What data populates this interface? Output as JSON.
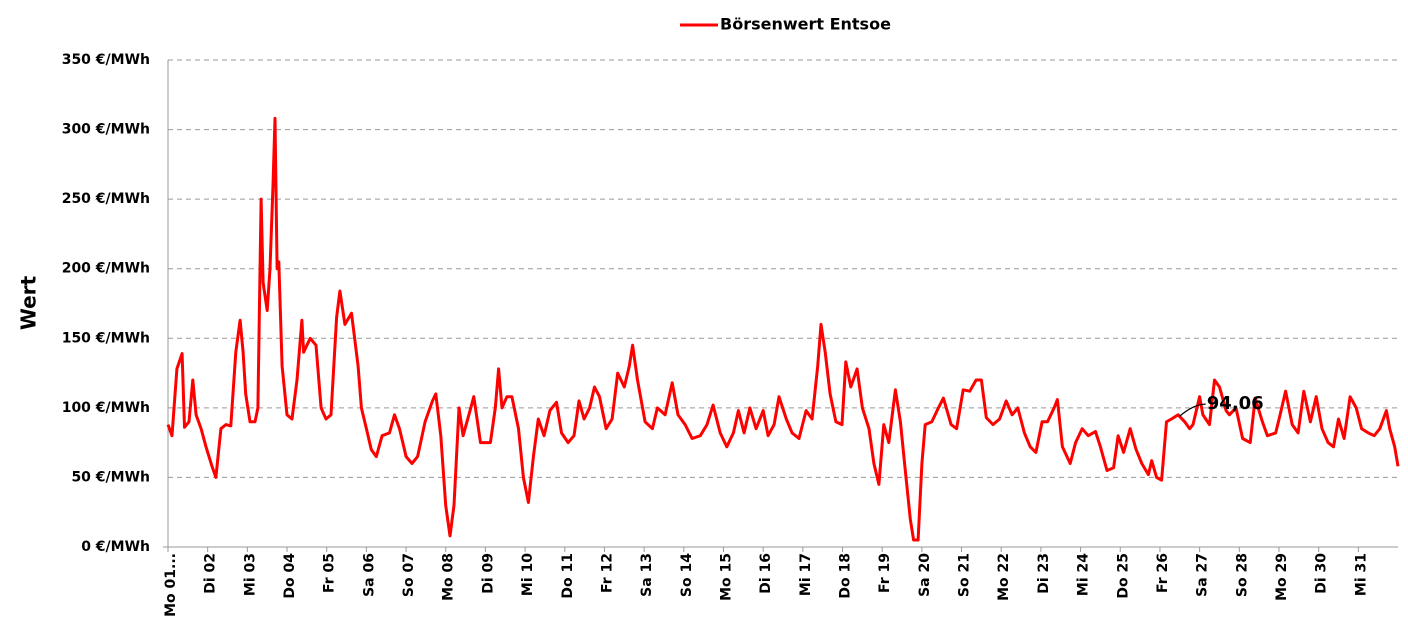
{
  "chart_data": {
    "type": "line",
    "y_axis_label": "Wert",
    "xlim": [
      0,
      744
    ],
    "xticks": [
      {
        "value": 0,
        "label": "Mo 01..."
      },
      {
        "value": 24,
        "label": "Di 02"
      },
      {
        "value": 48,
        "label": "Mi 03"
      },
      {
        "value": 72,
        "label": "Do 04"
      },
      {
        "value": 96,
        "label": "Fr 05"
      },
      {
        "value": 120,
        "label": "Sa 06"
      },
      {
        "value": 144,
        "label": "So 07"
      },
      {
        "value": 168,
        "label": "Mo 08"
      },
      {
        "value": 192,
        "label": "Di 09"
      },
      {
        "value": 216,
        "label": "Mi 10"
      },
      {
        "value": 240,
        "label": "Do 11"
      },
      {
        "value": 264,
        "label": "Fr 12"
      },
      {
        "value": 288,
        "label": "Sa 13"
      },
      {
        "value": 312,
        "label": "So 14"
      },
      {
        "value": 336,
        "label": "Mo 15"
      },
      {
        "value": 360,
        "label": "Di 16"
      },
      {
        "value": 384,
        "label": "Mi 17"
      },
      {
        "value": 408,
        "label": "Do 18"
      },
      {
        "value": 432,
        "label": "Fr 19"
      },
      {
        "value": 456,
        "label": "Sa 20"
      },
      {
        "value": 480,
        "label": "So 21"
      },
      {
        "value": 504,
        "label": "Mo 22"
      },
      {
        "value": 528,
        "label": "Di 23"
      },
      {
        "value": 552,
        "label": "Mi 24"
      },
      {
        "value": 576,
        "label": "Do 25"
      },
      {
        "value": 600,
        "label": "Fr 26"
      },
      {
        "value": 624,
        "label": "Sa 27"
      },
      {
        "value": 648,
        "label": "So 28"
      },
      {
        "value": 672,
        "label": "Mo 29"
      },
      {
        "value": 696,
        "label": "Di 30"
      },
      {
        "value": 720,
        "label": "Mi 31"
      }
    ],
    "ylim": [
      0,
      350
    ],
    "yticks": [
      {
        "value": 0,
        "label": "0 €/MWh"
      },
      {
        "value": 50,
        "label": "50 €/MWh"
      },
      {
        "value": 100,
        "label": "100 €/MWh"
      },
      {
        "value": 150,
        "label": "150 €/MWh"
      },
      {
        "value": 200,
        "label": "200 €/MWh"
      },
      {
        "value": 250,
        "label": "250 €/MWh"
      },
      {
        "value": 300,
        "label": "300 €/MWh"
      },
      {
        "value": 350,
        "label": "350 €/MWh"
      }
    ],
    "grid": true,
    "legend": "top",
    "x": [
      0,
      2.4,
      5.4,
      8.5,
      10,
      12.7,
      15,
      17,
      20,
      23,
      26.6,
      29,
      32,
      35,
      38,
      41,
      43.6,
      45.4,
      47,
      49.6,
      52.6,
      54.4,
      56.3,
      57.5,
      60,
      61.7,
      63.5,
      64.7,
      66,
      67,
      69,
      72,
      75,
      78,
      81,
      82,
      86,
      89.5,
      92.6,
      95.6,
      98.6,
      102,
      104,
      107,
      111,
      115,
      117,
      120,
      123,
      126,
      129.5,
      134,
      137,
      140,
      144,
      147.6,
      151,
      155.5,
      160,
      162,
      165,
      168,
      170.6,
      173,
      176,
      178.5,
      182,
      185,
      189,
      195,
      198,
      200,
      202,
      205,
      208,
      212,
      215,
      218,
      221,
      224,
      227.5,
      231,
      235,
      238,
      242,
      245.6,
      248.6,
      251.7,
      255,
      258,
      261,
      265,
      268.6,
      272,
      276,
      279,
      281,
      284,
      288.6,
      293,
      296,
      300.7,
      305,
      308.5,
      312.8,
      317,
      322,
      326,
      329.7,
      334,
      338,
      342,
      345,
      348.5,
      352,
      355.7,
      360,
      363,
      366.6,
      369.6,
      374,
      377.5,
      381.7,
      386,
      389.6,
      393,
      395,
      397.5,
      400.5,
      404,
      407.7,
      410,
      413,
      416.8,
      420,
      424,
      427,
      430,
      433,
      436,
      440,
      443,
      446,
      449,
      451,
      453.7,
      456,
      458,
      462,
      466,
      469,
      473.7,
      477,
      481,
      485,
      488.8,
      492,
      495,
      499,
      503,
      507,
      510.6,
      514,
      518,
      521.5,
      525,
      528.7,
      532,
      536,
      538,
      541,
      545.7,
      549,
      553,
      556.6,
      561,
      564,
      568,
      572,
      574.7,
      578,
      582,
      585.6,
      589,
      593,
      595,
      598,
      601,
      604,
      607,
      611,
      615,
      618,
      620,
      624,
      626,
      630,
      633,
      636,
      640,
      642,
      646,
      650,
      654.6,
      657.6,
      662,
      665,
      670,
      672.7,
      676,
      680,
      683.6,
      687,
      691,
      694.5,
      698,
      701.7,
      705,
      708,
      711.4,
      715,
      718.7,
      722,
      726,
      729.6,
      733,
      737,
      739,
      742,
      744
    ],
    "series": [
      {
        "name": "Börsenwert Entsoe",
        "color": "#ff0000",
        "values": [
          88,
          80,
          128,
          139,
          86,
          90,
          120,
          95,
          85,
          72,
          58,
          50,
          85,
          88,
          87,
          140,
          163,
          140,
          110,
          90,
          90,
          100,
          250,
          190,
          170,
          200,
          260,
          308,
          200,
          205,
          130,
          95,
          92,
          120,
          163,
          140,
          150,
          145,
          100,
          92,
          95,
          165,
          184,
          160,
          168,
          130,
          100,
          85,
          70,
          65,
          80,
          82,
          95,
          85,
          65,
          60,
          65,
          90,
          105,
          110,
          80,
          30,
          8,
          30,
          100,
          80,
          95,
          108,
          75,
          75,
          100,
          128,
          100,
          108,
          108,
          85,
          50,
          32,
          65,
          92,
          80,
          98,
          104,
          82,
          75,
          80,
          105,
          92,
          100,
          115,
          108,
          85,
          92,
          125,
          115,
          130,
          145,
          120,
          90,
          85,
          100,
          95,
          118,
          95,
          88,
          78,
          80,
          88,
          102,
          82,
          72,
          82,
          98,
          82,
          100,
          85,
          98,
          80,
          88,
          108,
          92,
          82,
          78,
          98,
          92,
          130,
          160,
          140,
          110,
          90,
          88,
          133,
          115,
          128,
          100,
          85,
          60,
          45,
          88,
          75,
          113,
          90,
          55,
          20,
          5,
          5,
          60,
          88,
          90,
          100,
          107,
          88,
          85,
          113,
          112,
          120,
          120,
          93,
          88,
          92,
          105,
          95,
          100,
          82,
          72,
          68,
          90,
          90,
          100,
          106,
          72,
          60,
          75,
          85,
          80,
          83,
          72,
          55,
          57,
          80,
          68,
          85,
          70,
          60,
          52,
          62,
          50,
          48,
          90,
          92,
          95,
          90,
          85,
          88,
          108,
          95,
          88,
          120,
          115,
          98,
          95,
          100,
          78,
          75,
          107,
          90,
          80,
          82,
          95,
          112,
          88,
          82,
          112,
          90,
          108,
          85,
          75,
          72,
          92,
          78,
          108,
          100,
          85,
          82,
          80,
          85,
          98,
          85,
          72,
          58
        ]
      }
    ],
    "annotations": [
      {
        "x": 612,
        "value": 94.06,
        "label": "94,06"
      }
    ]
  }
}
